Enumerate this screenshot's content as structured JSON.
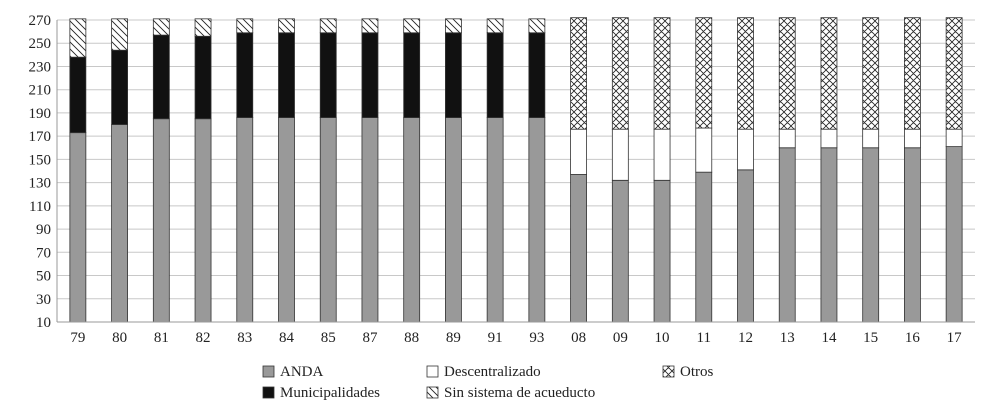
{
  "chart_data": {
    "type": "bar",
    "stacked": true,
    "categories": [
      "79",
      "80",
      "81",
      "82",
      "83",
      "84",
      "85",
      "87",
      "88",
      "89",
      "91",
      "93",
      "08",
      "09",
      "10",
      "11",
      "12",
      "13",
      "14",
      "15",
      "16",
      "17"
    ],
    "series": [
      {
        "name": "ANDA",
        "pattern": "solid-gray",
        "color": "#999999",
        "values": [
          163,
          170,
          175,
          175,
          176,
          176,
          176,
          176,
          176,
          176,
          176,
          176,
          127,
          122,
          122,
          129,
          131,
          150,
          150,
          150,
          150,
          151
        ]
      },
      {
        "name": "Municipalidades",
        "pattern": "solid-black",
        "color": "#111111",
        "values": [
          65,
          64,
          72,
          71,
          73,
          73,
          73,
          73,
          73,
          73,
          73,
          73,
          0,
          0,
          0,
          0,
          0,
          0,
          0,
          0,
          0,
          0
        ]
      },
      {
        "name": "Descentralizado",
        "pattern": "white",
        "color": "#ffffff",
        "values": [
          0,
          0,
          0,
          0,
          0,
          0,
          0,
          0,
          0,
          0,
          0,
          0,
          39,
          44,
          44,
          38,
          35,
          16,
          16,
          16,
          16,
          15
        ]
      },
      {
        "name": "Sin sistema de acueducto",
        "pattern": "diagonal-hatch",
        "color": "#ffffff",
        "values": [
          33,
          27,
          14,
          15,
          12,
          12,
          12,
          12,
          12,
          12,
          12,
          12,
          0,
          0,
          0,
          0,
          0,
          0,
          0,
          0,
          0,
          0
        ]
      },
      {
        "name": "Otros",
        "pattern": "cross-hatch",
        "color": "#ffffff",
        "values": [
          0,
          0,
          0,
          0,
          0,
          0,
          0,
          0,
          0,
          0,
          0,
          0,
          96,
          96,
          96,
          95,
          96,
          96,
          96,
          96,
          96,
          96
        ]
      }
    ],
    "y_ticks": [
      "10",
      "30",
      "50",
      "70",
      "90",
      "110",
      "130",
      "150",
      "170",
      "190",
      "210",
      "230",
      "250",
      "270"
    ],
    "ylim": [
      10,
      270
    ],
    "base": 10,
    "grid": true,
    "legend_placement": "bottom",
    "legend": [
      {
        "label": "ANDA",
        "pattern": "solid-gray"
      },
      {
        "label": "Descentralizado",
        "pattern": "white"
      },
      {
        "label": "Otros",
        "pattern": "cross-hatch"
      },
      {
        "label": "Municipalidades",
        "pattern": "solid-black"
      },
      {
        "label": "Sin sistema de acueducto",
        "pattern": "diagonal-hatch"
      }
    ]
  }
}
